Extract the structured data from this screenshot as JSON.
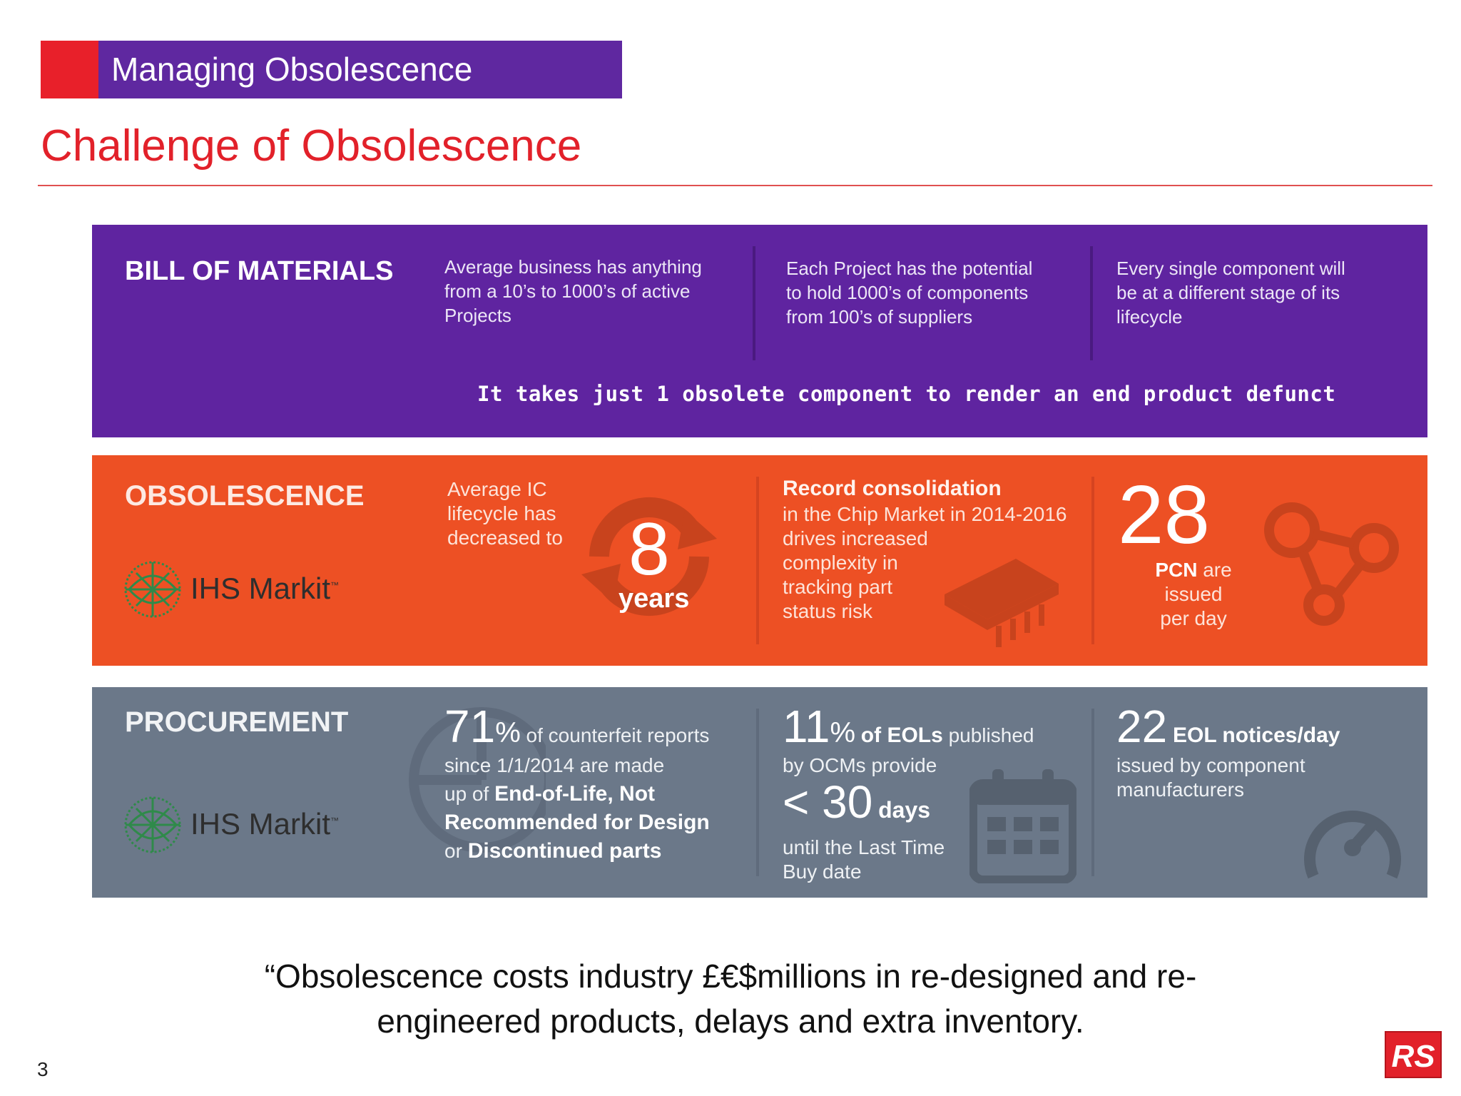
{
  "header": {
    "section_label": "Managing Obsolescence",
    "title": "Challenge of Obsolescence"
  },
  "bom": {
    "title": "BILL OF MATERIALS",
    "col1": [
      "Average business has anything",
      "from a 10’s to 1000’s of active",
      "Projects"
    ],
    "col2": [
      "Each Project has the potential",
      "to hold 1000’s of components",
      "from 100’s of suppliers"
    ],
    "col3": [
      "Every single component will",
      "be at a different stage of its",
      "lifecycle"
    ],
    "tagline": "It takes just 1 obsolete component to render an end product defunct"
  },
  "obsolescence": {
    "title": "OBSOLESCENCE",
    "source": "IHS Markit",
    "lifecycle_text": [
      "Average IC",
      "lifecycle has",
      "decreased to"
    ],
    "lifecycle_number": "8",
    "lifecycle_unit": "years",
    "consolidation_title": "Record consolidation",
    "consolidation_text": [
      "in the Chip Market in 2014-2016",
      "drives increased",
      "complexity in",
      "tracking part",
      "status risk"
    ],
    "pcn_number": "28",
    "pcn_bold": "PCN",
    "pcn_text_1": "are",
    "pcn_text_2": "issued",
    "pcn_text_3": "per day"
  },
  "procurement": {
    "title": "PROCUREMENT",
    "source": "IHS Markit",
    "counterfeit": {
      "number": "71",
      "percent": "%",
      "line1_rest": "of counterfeit reports",
      "line2": "since 1/1/2014 are made",
      "line3_pre": "up of",
      "line3_bold": "End-of-Life, Not",
      "line4_bold": "Recommended for Design",
      "line5_pre": "or",
      "line5_bold": "Discontinued parts"
    },
    "eols": {
      "number": "11",
      "percent": "%",
      "bold": "of EOLs",
      "rest": "published",
      "line2": "by OCMs provide",
      "lt_number": "< 30",
      "lt_unit": "days",
      "line3": "until the Last Time",
      "line4": "Buy date"
    },
    "notices": {
      "number": "22",
      "bold": "EOL notices/day",
      "line2": "issued by component",
      "line3": "manufacturers"
    }
  },
  "quote": {
    "line1": "“Obsolescence costs industry £€$millions in re-designed and re-",
    "line2": "engineered products, delays and extra inventory."
  },
  "footer": {
    "page_number": "3",
    "logo_text": "RS"
  },
  "colors": {
    "purple": "#5f24a0",
    "red": "#e8202a",
    "orange": "#ed5024",
    "slate": "#6b7889"
  }
}
